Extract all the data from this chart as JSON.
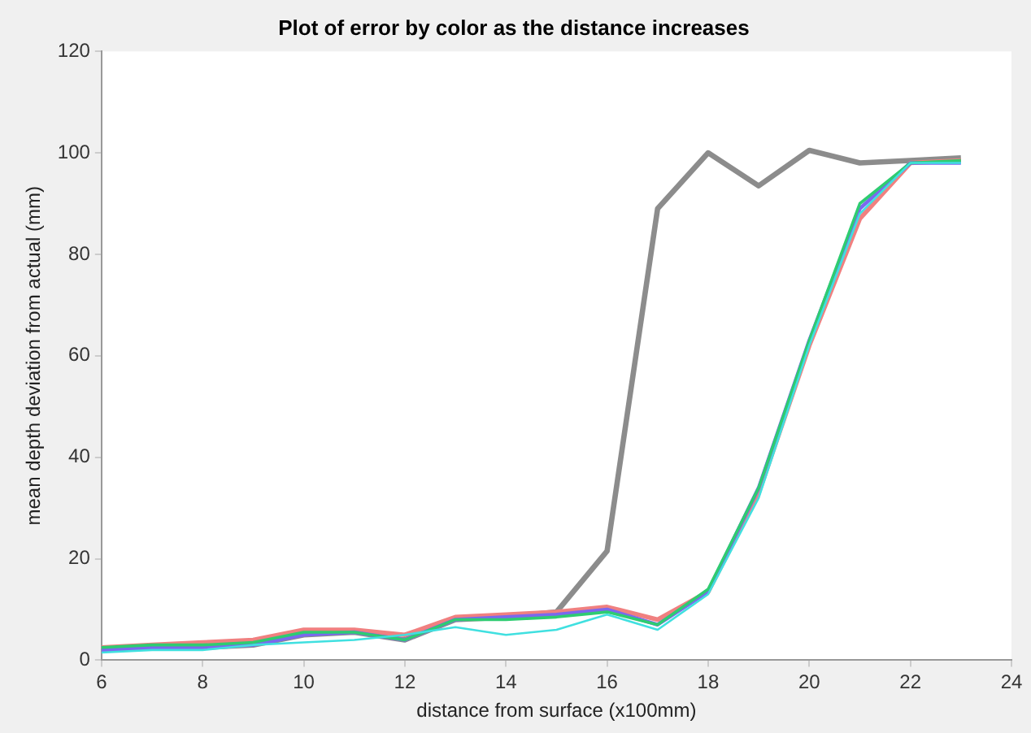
{
  "chart_data": {
    "type": "line",
    "title": "Plot of error by color as the distance increases",
    "xlabel": "distance from surface (x100mm)",
    "ylabel": "mean depth deviation from actual (mm)",
    "x": [
      6,
      7,
      8,
      9,
      10,
      11,
      12,
      13,
      14,
      15,
      16,
      17,
      18,
      19,
      20,
      21,
      22,
      23
    ],
    "xlim": [
      6,
      24
    ],
    "xticks": [
      6,
      8,
      10,
      12,
      14,
      16,
      18,
      20,
      22,
      24
    ],
    "ylim": [
      0,
      120
    ],
    "yticks": [
      0,
      20,
      40,
      60,
      80,
      100,
      120
    ],
    "grid": false,
    "legend": false,
    "marker": "none",
    "line_style": "solid",
    "series": [
      {
        "color": "#8c8c8c",
        "values": [
          2,
          2.5,
          2.5,
          3,
          5,
          5.5,
          4,
          8,
          8.5,
          9.5,
          21.5,
          89,
          100,
          93.5,
          100.5,
          98,
          98.5,
          99
        ]
      },
      {
        "color": "#f08080",
        "values": [
          2.5,
          3,
          3.5,
          4,
          6,
          6,
          5,
          8.5,
          9,
          9.5,
          10.5,
          8,
          13.5,
          33,
          62,
          87,
          98,
          98.5
        ]
      },
      {
        "color": "#7b68ee",
        "values": [
          2,
          2.5,
          2.5,
          3,
          5,
          5.5,
          4,
          8,
          8.5,
          9,
          10,
          7,
          13.5,
          34,
          63,
          89,
          98,
          98
        ]
      },
      {
        "color": "#2ecc71",
        "values": [
          2.5,
          3,
          3,
          3.5,
          5.5,
          5.5,
          4,
          8,
          8,
          8.5,
          9.5,
          7,
          14,
          34,
          63,
          90,
          98,
          98.5
        ]
      },
      {
        "color": "#40e0e0",
        "values": [
          1.5,
          2,
          2,
          3,
          3.5,
          4,
          5,
          6.5,
          5,
          6,
          9,
          6,
          13,
          32,
          62,
          88,
          98,
          98
        ]
      }
    ]
  }
}
